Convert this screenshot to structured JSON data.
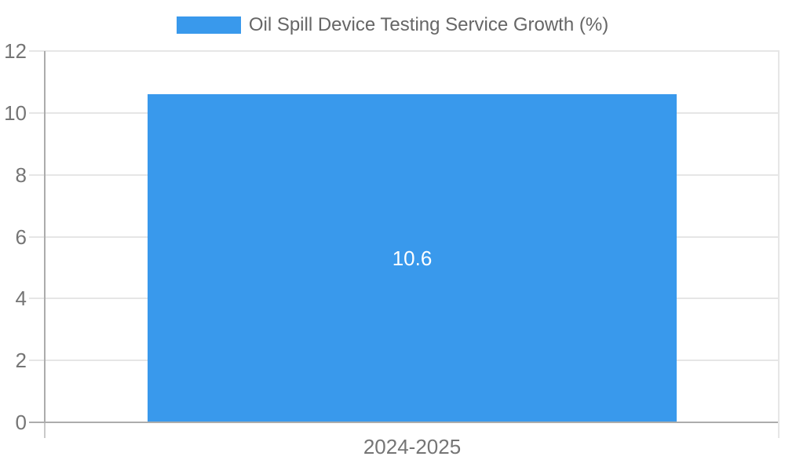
{
  "chart_data": {
    "type": "bar",
    "title": "Oil Spill Device Testing Service Growth (%)",
    "categories": [
      "2024-2025"
    ],
    "values": [
      10.6
    ],
    "value_labels": [
      "10.6"
    ],
    "series": [
      {
        "name": "Oil Spill Device Testing Service Growth (%)",
        "values": [
          10.6
        ]
      }
    ],
    "xlabel": "",
    "ylabel": "",
    "ylim": [
      0,
      12
    ],
    "yticks": [
      0,
      2,
      4,
      6,
      8,
      10,
      12
    ],
    "grid": true,
    "legend_position": "top",
    "colors": {
      "bar": "#3999EC",
      "grid": "#E6E6E6",
      "axis": "#ACACAC",
      "axis_tail": "#C9C9C9",
      "tick_text": "#757575",
      "legend_text": "#666666",
      "value_text": "#FFFFFF"
    }
  }
}
